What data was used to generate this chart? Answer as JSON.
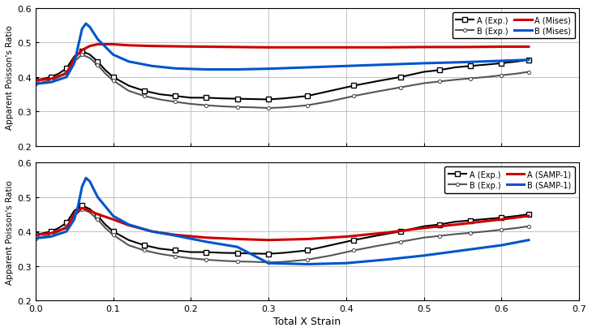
{
  "title": "",
  "xlabel": "Total X Strain",
  "ylabel": "Apparent Poisson's Ratio",
  "xlim": [
    0,
    0.7
  ],
  "ylim": [
    0.2,
    0.6
  ],
  "xticks": [
    0,
    0.1,
    0.2,
    0.3,
    0.4,
    0.5,
    0.6,
    0.7
  ],
  "yticks": [
    0.2,
    0.3,
    0.4,
    0.5,
    0.6
  ],
  "exp_A_x": [
    0.0,
    0.01,
    0.02,
    0.03,
    0.04,
    0.05,
    0.06,
    0.07,
    0.08,
    0.09,
    0.1,
    0.12,
    0.14,
    0.16,
    0.18,
    0.2,
    0.22,
    0.24,
    0.26,
    0.28,
    0.3,
    0.32,
    0.35,
    0.38,
    0.41,
    0.44,
    0.47,
    0.5,
    0.52,
    0.54,
    0.56,
    0.58,
    0.6,
    0.62,
    0.635
  ],
  "exp_A_y": [
    0.39,
    0.395,
    0.4,
    0.41,
    0.425,
    0.46,
    0.475,
    0.465,
    0.445,
    0.42,
    0.4,
    0.375,
    0.36,
    0.35,
    0.345,
    0.34,
    0.34,
    0.338,
    0.337,
    0.336,
    0.335,
    0.338,
    0.345,
    0.36,
    0.375,
    0.388,
    0.4,
    0.415,
    0.42,
    0.428,
    0.432,
    0.436,
    0.44,
    0.445,
    0.45
  ],
  "exp_B_x": [
    0.0,
    0.01,
    0.02,
    0.03,
    0.04,
    0.05,
    0.06,
    0.07,
    0.08,
    0.09,
    0.1,
    0.12,
    0.14,
    0.16,
    0.18,
    0.2,
    0.22,
    0.24,
    0.26,
    0.28,
    0.3,
    0.32,
    0.35,
    0.38,
    0.41,
    0.44,
    0.47,
    0.5,
    0.52,
    0.54,
    0.56,
    0.58,
    0.6,
    0.62,
    0.635
  ],
  "exp_B_y": [
    0.38,
    0.385,
    0.39,
    0.4,
    0.415,
    0.445,
    0.465,
    0.455,
    0.435,
    0.41,
    0.39,
    0.36,
    0.345,
    0.335,
    0.328,
    0.322,
    0.318,
    0.315,
    0.313,
    0.312,
    0.31,
    0.312,
    0.318,
    0.33,
    0.345,
    0.358,
    0.37,
    0.382,
    0.387,
    0.392,
    0.396,
    0.4,
    0.405,
    0.41,
    0.415
  ],
  "mises_A_x": [
    0.0,
    0.02,
    0.04,
    0.05,
    0.06,
    0.07,
    0.08,
    0.1,
    0.12,
    0.15,
    0.18,
    0.22,
    0.26,
    0.3,
    0.35,
    0.4,
    0.45,
    0.5,
    0.55,
    0.6,
    0.635
  ],
  "mises_A_y": [
    0.39,
    0.395,
    0.41,
    0.455,
    0.478,
    0.49,
    0.495,
    0.495,
    0.492,
    0.49,
    0.489,
    0.488,
    0.487,
    0.486,
    0.486,
    0.486,
    0.486,
    0.487,
    0.487,
    0.488,
    0.488
  ],
  "mises_B_x": [
    0.0,
    0.02,
    0.04,
    0.05,
    0.055,
    0.06,
    0.065,
    0.07,
    0.08,
    0.1,
    0.12,
    0.15,
    0.18,
    0.22,
    0.26,
    0.3,
    0.35,
    0.4,
    0.45,
    0.5,
    0.55,
    0.6,
    0.635
  ],
  "mises_B_y": [
    0.38,
    0.385,
    0.4,
    0.44,
    0.49,
    0.54,
    0.555,
    0.545,
    0.51,
    0.465,
    0.445,
    0.432,
    0.425,
    0.422,
    0.422,
    0.424,
    0.428,
    0.432,
    0.436,
    0.44,
    0.443,
    0.447,
    0.45
  ],
  "samp_A_x": [
    0.0,
    0.02,
    0.04,
    0.05,
    0.06,
    0.07,
    0.08,
    0.1,
    0.12,
    0.15,
    0.18,
    0.22,
    0.26,
    0.3,
    0.35,
    0.4,
    0.45,
    0.5,
    0.55,
    0.6,
    0.635
  ],
  "samp_A_y": [
    0.39,
    0.395,
    0.41,
    0.45,
    0.468,
    0.46,
    0.45,
    0.435,
    0.418,
    0.4,
    0.39,
    0.382,
    0.378,
    0.375,
    0.378,
    0.385,
    0.396,
    0.41,
    0.422,
    0.435,
    0.445
  ],
  "samp_B_x": [
    0.0,
    0.02,
    0.04,
    0.05,
    0.055,
    0.06,
    0.065,
    0.07,
    0.08,
    0.1,
    0.12,
    0.15,
    0.18,
    0.22,
    0.26,
    0.3,
    0.35,
    0.4,
    0.45,
    0.5,
    0.55,
    0.6,
    0.635
  ],
  "samp_B_y": [
    0.38,
    0.385,
    0.4,
    0.435,
    0.475,
    0.53,
    0.555,
    0.545,
    0.5,
    0.445,
    0.42,
    0.4,
    0.388,
    0.37,
    0.355,
    0.308,
    0.305,
    0.308,
    0.318,
    0.33,
    0.345,
    0.36,
    0.375
  ],
  "color_exp_A": "#000000",
  "color_exp_B": "#555555",
  "color_mises_A": "#cc0000",
  "color_mises_B": "#0055cc",
  "color_samp_A": "#cc0000",
  "color_samp_B": "#0055cc",
  "marker_A": "s",
  "marker_B": "o",
  "marker_size": 4,
  "linewidth_exp": 1.5,
  "linewidth_sim": 2.2,
  "legend1": [
    "A (Exp.)",
    "B (Exp.)",
    "A (Mises)",
    "B (Mises)"
  ],
  "legend2": [
    "A (Exp.)",
    "B (Exp.)",
    "A (SAMP-1)",
    "B (SAMP-1)"
  ]
}
